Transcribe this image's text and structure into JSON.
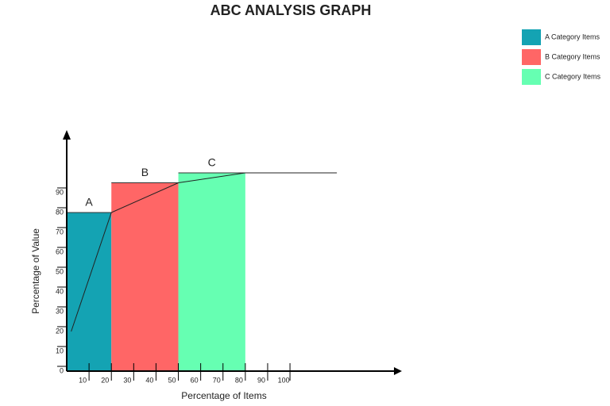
{
  "chart_data": {
    "type": "abc",
    "title": "ABC ANALYSIS GRAPH",
    "x_label": "Percentage of Items",
    "y_label": "Percentage of Value",
    "xlim": [
      0,
      148
    ],
    "ylim": [
      0,
      120
    ],
    "xticks": [
      10,
      20,
      30,
      40,
      50,
      60,
      70,
      80,
      90,
      100
    ],
    "yticks": [
      0,
      10,
      20,
      30,
      40,
      50,
      60,
      70,
      80,
      90
    ],
    "bars": [
      {
        "name": "A Category Items",
        "label": "A",
        "color": "#14a3b3",
        "x0": 0,
        "x1": 20,
        "value": 80
      },
      {
        "name": "B Category Items",
        "label": "B",
        "color": "#ff6666",
        "x0": 20,
        "x1": 50,
        "value": 95
      },
      {
        "name": "C Category Items",
        "label": "C",
        "color": "#66ffb2",
        "x0": 50,
        "x1": 80,
        "value": 100
      }
    ],
    "curve": {
      "color": "#222222",
      "x": [
        2,
        20,
        50,
        80,
        121
      ],
      "values": [
        20,
        80,
        95,
        100,
        100
      ]
    }
  }
}
